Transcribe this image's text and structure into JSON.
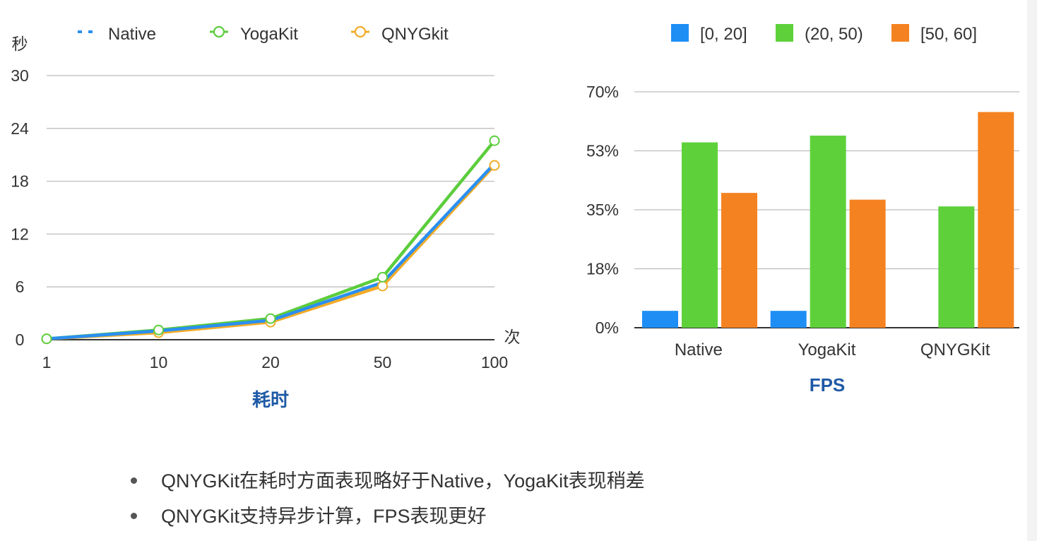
{
  "chart_data": [
    {
      "type": "line",
      "title": "耗时",
      "ylabel": "秒",
      "xlabel": "次",
      "categories": [
        "1",
        "10",
        "20",
        "50",
        "100"
      ],
      "ylim": [
        0,
        30
      ],
      "yticks": [
        0,
        6,
        12,
        18,
        24,
        30
      ],
      "grid": true,
      "legend": "top",
      "series": [
        {
          "name": "Native",
          "values": [
            0.1,
            1.0,
            2.2,
            6.5,
            20.0
          ],
          "color": "#2b8ff0",
          "marker": "none"
        },
        {
          "name": "YogaKit",
          "values": [
            0.1,
            1.1,
            2.4,
            7.1,
            22.6
          ],
          "color": "#5ccd3c",
          "marker": "circle"
        },
        {
          "name": "QNYGkit",
          "values": [
            0.1,
            0.8,
            2.0,
            6.1,
            19.8
          ],
          "color": "#f2ac28",
          "marker": "circle"
        }
      ]
    },
    {
      "type": "bar",
      "title": "FPS",
      "categories": [
        "Native",
        "YogaKit",
        "QNYGKit"
      ],
      "ylim": [
        0,
        70
      ],
      "yticks": [
        "0%",
        "18%",
        "35%",
        "53%",
        "70%"
      ],
      "grid": true,
      "legend": "top",
      "series": [
        {
          "name": "[0, 20]",
          "values": [
            5,
            5,
            0
          ],
          "color": "#1e8ef5"
        },
        {
          "name": "(20, 50)",
          "values": [
            55,
            57,
            36
          ],
          "color": "#5ed13a"
        },
        {
          "name": "[50, 60]",
          "values": [
            40,
            38,
            64
          ],
          "color": "#f58220"
        }
      ]
    }
  ],
  "notes": [
    "QNYGKit在耗时方面表现略好于Native，YogaKit表现稍差",
    "QNYGKit支持异步计算，FPS表现更好"
  ]
}
